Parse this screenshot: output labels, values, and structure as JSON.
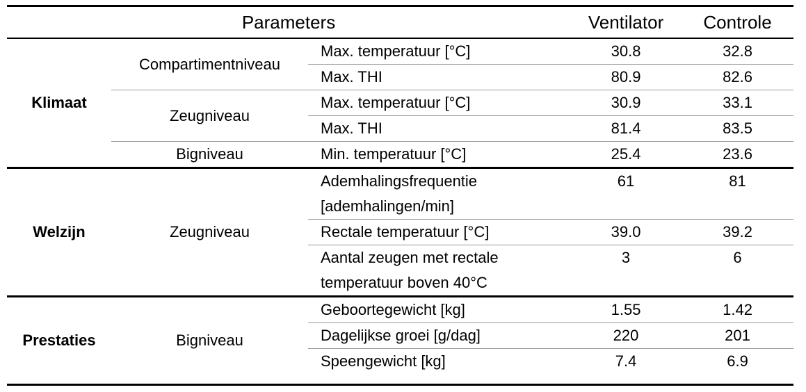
{
  "header": {
    "parameters": "Parameters",
    "ventilator": "Ventilator",
    "controle": "Controle"
  },
  "groups": [
    {
      "label": "Klimaat",
      "subgroups": [
        {
          "label": "Compartimentniveau",
          "rows": [
            {
              "parameter": "Max. temperatuur [°C]",
              "ventilator": "30.8",
              "controle": "32.8"
            },
            {
              "parameter": "Max. THI",
              "ventilator": "80.9",
              "controle": "82.6"
            }
          ]
        },
        {
          "label": "Zeugniveau",
          "rows": [
            {
              "parameter": "Max. temperatuur [°C]",
              "ventilator": "30.9",
              "controle": "33.1"
            },
            {
              "parameter": "Max. THI",
              "ventilator": "81.4",
              "controle": "83.5"
            }
          ]
        },
        {
          "label": "Bigniveau",
          "rows": [
            {
              "parameter": "Min. temperatuur [°C]",
              "ventilator": "25.4",
              "controle": "23.6"
            }
          ]
        }
      ]
    },
    {
      "label": "Welzijn",
      "subgroups": [
        {
          "label": "Zeugniveau",
          "rows": [
            {
              "parameter": "Ademhalingsfrequentie [ademhalingen/min]",
              "ventilator": "61",
              "controle": "81"
            },
            {
              "parameter": "Rectale temperatuur [°C]",
              "ventilator": "39.0",
              "controle": "39.2"
            },
            {
              "parameter": "Aantal zeugen met rectale temperatuur boven 40°C",
              "ventilator": "3",
              "controle": "6"
            }
          ]
        }
      ]
    },
    {
      "label": "Prestaties",
      "subgroups": [
        {
          "label": "Bigniveau",
          "rows": [
            {
              "parameter": "Geboortegewicht [kg]",
              "ventilator": "1.55",
              "controle": "1.42"
            },
            {
              "parameter": "Dagelijkse groei [g/dag]",
              "ventilator": "220",
              "controle": "201"
            },
            {
              "parameter": "Speengewicht [kg]",
              "ventilator": "7.4",
              "controle": "6.9"
            }
          ]
        }
      ]
    }
  ]
}
